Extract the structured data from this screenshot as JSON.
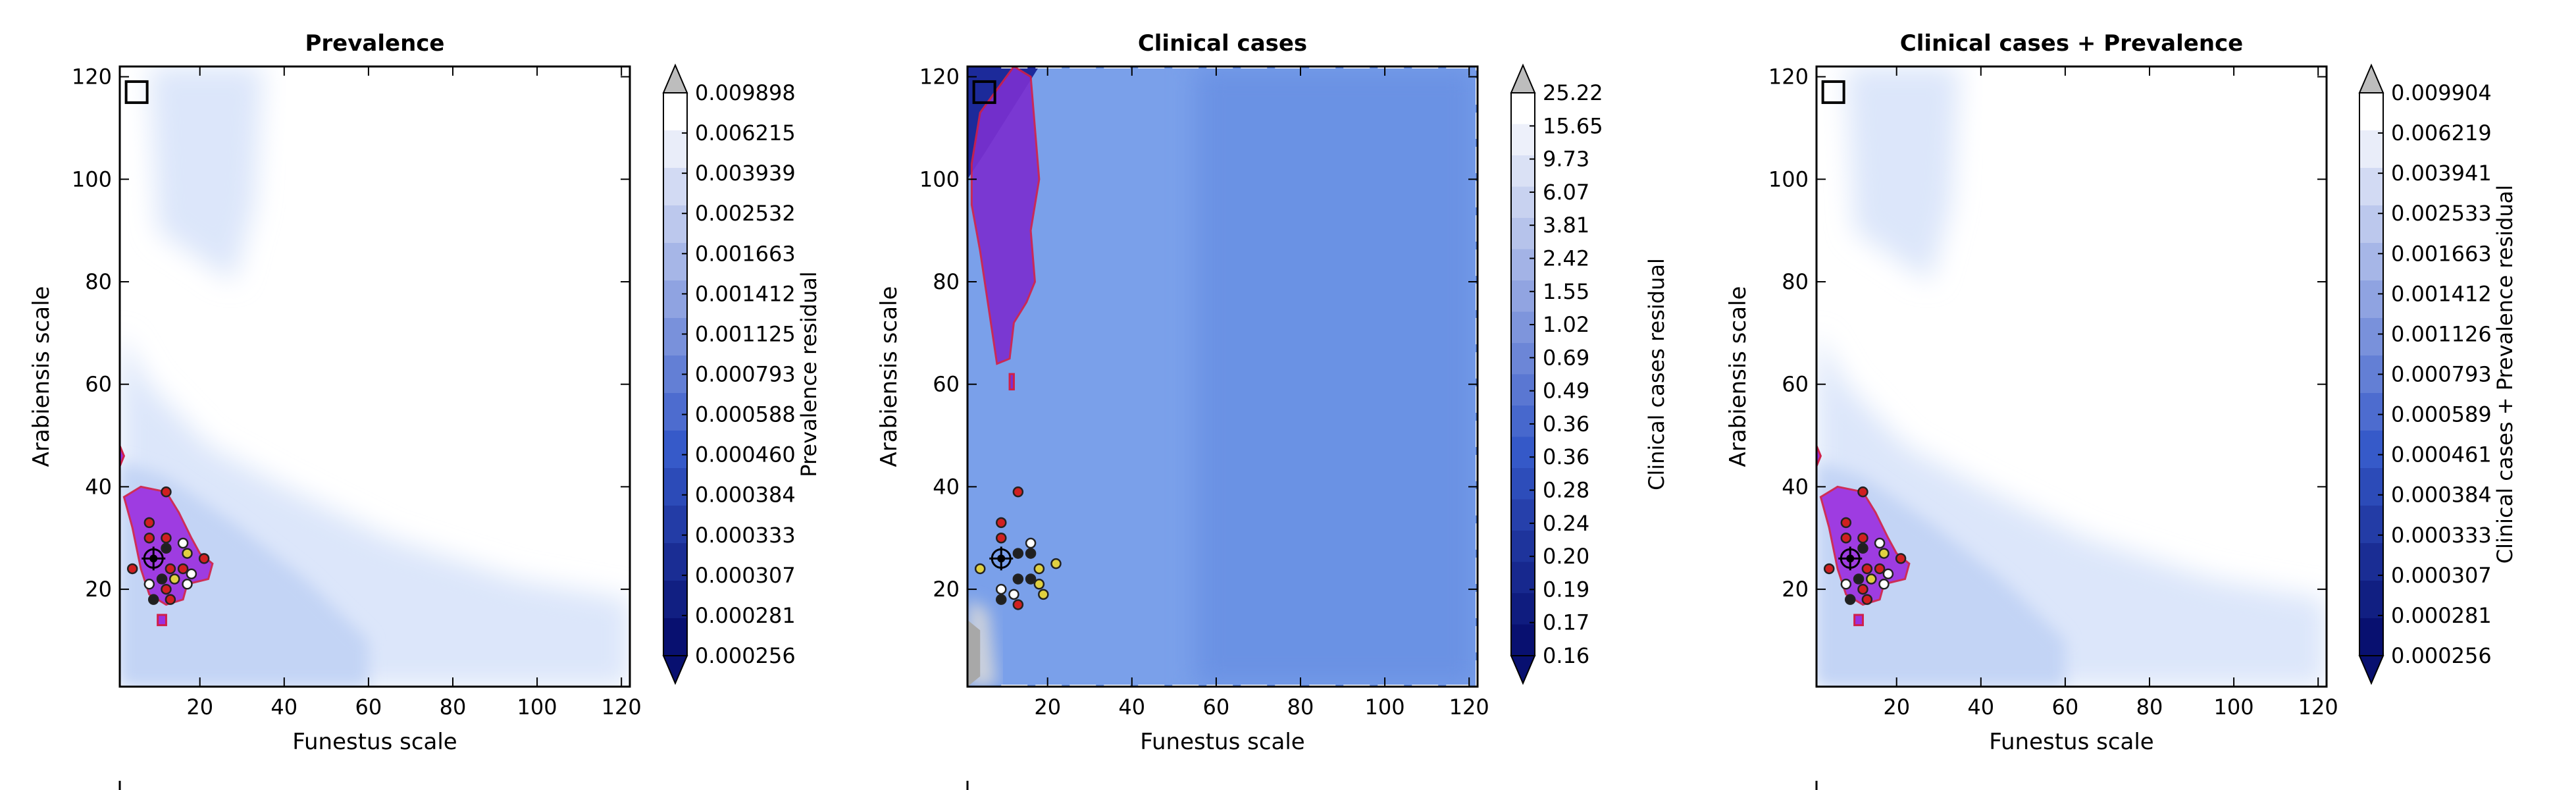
{
  "chart_data": [
    {
      "type": "heatmap",
      "title": "Prevalence",
      "xlabel": "Funestus scale",
      "ylabel": "Arabiensis scale",
      "xlim": [
        1,
        122
      ],
      "ylim": [
        1,
        122
      ],
      "xticks": [
        "20",
        "40",
        "60",
        "80",
        "100",
        "120"
      ],
      "yticks": [
        "20",
        "40",
        "60",
        "80",
        "100",
        "120"
      ],
      "grid": false,
      "colorbar_label": "Prevalence residual",
      "colorbar_levels": [
        "0.009898",
        "0.006215",
        "0.003939",
        "0.002532",
        "0.001663",
        "0.001412",
        "0.001125",
        "0.000793",
        "0.000588",
        "0.000460",
        "0.000384",
        "0.000333",
        "0.000307",
        "0.000281",
        "0.000256"
      ],
      "best_region": {
        "name": "",
        "color": "#9b30e0",
        "outline": "#d0204a",
        "polygon": [
          [
            2,
            38
          ],
          [
            6,
            40
          ],
          [
            12,
            39
          ],
          [
            15,
            35
          ],
          [
            18,
            30
          ],
          [
            20,
            27
          ],
          [
            23,
            25
          ],
          [
            22,
            22
          ],
          [
            17,
            21
          ],
          [
            16,
            18
          ],
          [
            12,
            17
          ],
          [
            8,
            19
          ],
          [
            6,
            24
          ],
          [
            4,
            32
          ],
          [
            2,
            38
          ]
        ]
      },
      "secondary_region": {
        "polygon": [
          [
            10,
            13
          ],
          [
            12,
            13
          ],
          [
            12,
            15
          ],
          [
            10,
            15
          ],
          [
            10,
            13
          ]
        ]
      },
      "marker": {
        "x": 9,
        "y": 26
      },
      "square_marker": {
        "x": 5,
        "y": 117
      },
      "points": [
        {
          "x": 12,
          "y": 39,
          "color": "#d02020"
        },
        {
          "x": 8,
          "y": 33,
          "color": "#d02020"
        },
        {
          "x": 8,
          "y": 30,
          "color": "#d02020"
        },
        {
          "x": 12,
          "y": 30,
          "color": "#d02020"
        },
        {
          "x": 16,
          "y": 29,
          "color": "#ffffff"
        },
        {
          "x": 12,
          "y": 28,
          "color": "#202020"
        },
        {
          "x": 17,
          "y": 27,
          "color": "#e0d040"
        },
        {
          "x": 21,
          "y": 26,
          "color": "#d02020"
        },
        {
          "x": 4,
          "y": 24,
          "color": "#d02020"
        },
        {
          "x": 13,
          "y": 24,
          "color": "#d02020"
        },
        {
          "x": 16,
          "y": 24,
          "color": "#d02020"
        },
        {
          "x": 18,
          "y": 23,
          "color": "#ffffff"
        },
        {
          "x": 14,
          "y": 22,
          "color": "#e0d040"
        },
        {
          "x": 11,
          "y": 22,
          "color": "#202020"
        },
        {
          "x": 17,
          "y": 21,
          "color": "#ffffff"
        },
        {
          "x": 8,
          "y": 21,
          "color": "#ffffff"
        },
        {
          "x": 12,
          "y": 20,
          "color": "#d02020"
        },
        {
          "x": 13,
          "y": 18,
          "color": "#d02020"
        },
        {
          "x": 9,
          "y": 18,
          "color": "#202020"
        }
      ]
    },
    {
      "type": "heatmap",
      "title": "Clinical cases",
      "xlabel": "Funestus scale",
      "ylabel": "Arabiensis scale",
      "xlim": [
        1,
        122
      ],
      "ylim": [
        1,
        122
      ],
      "xticks": [
        "20",
        "40",
        "60",
        "80",
        "100",
        "120"
      ],
      "yticks": [
        "20",
        "40",
        "60",
        "80",
        "100",
        "120"
      ],
      "grid": false,
      "colorbar_label": "Clinical cases residual",
      "colorbar_levels": [
        "25.22",
        "15.65",
        "9.73",
        "6.07",
        "3.81",
        "2.42",
        "1.55",
        "1.02",
        "0.69",
        "0.49",
        "0.36",
        "0.36",
        "0.28",
        "0.24",
        "0.20",
        "0.19",
        "0.17",
        "0.16"
      ],
      "best_region": {
        "name": "",
        "color": "#7a30d0",
        "outline": "#d0204a",
        "polygon": [
          [
            2,
            103
          ],
          [
            4,
            113
          ],
          [
            12,
            122
          ],
          [
            16,
            120
          ],
          [
            17,
            110
          ],
          [
            18,
            100
          ],
          [
            16,
            90
          ],
          [
            17,
            80
          ],
          [
            15,
            76
          ],
          [
            12,
            72
          ],
          [
            11,
            65
          ],
          [
            8,
            64
          ],
          [
            6,
            75
          ],
          [
            4,
            86
          ],
          [
            2,
            95
          ],
          [
            2,
            103
          ]
        ]
      },
      "secondary_region": {
        "polygon": [
          [
            11,
            59
          ],
          [
            12,
            59
          ],
          [
            12,
            62
          ],
          [
            11,
            62
          ],
          [
            11,
            59
          ]
        ]
      },
      "marker": {
        "x": 9,
        "y": 26
      },
      "square_marker": {
        "x": 5,
        "y": 117
      },
      "points": [
        {
          "x": 13,
          "y": 39,
          "color": "#d02020"
        },
        {
          "x": 9,
          "y": 33,
          "color": "#d02020"
        },
        {
          "x": 9,
          "y": 30,
          "color": "#d02020"
        },
        {
          "x": 16,
          "y": 29,
          "color": "#ffffff"
        },
        {
          "x": 13,
          "y": 27,
          "color": "#202020"
        },
        {
          "x": 16,
          "y": 27,
          "color": "#202020"
        },
        {
          "x": 22,
          "y": 25,
          "color": "#e0d040"
        },
        {
          "x": 18,
          "y": 24,
          "color": "#e0d040"
        },
        {
          "x": 4,
          "y": 24,
          "color": "#e0d040"
        },
        {
          "x": 13,
          "y": 22,
          "color": "#202020"
        },
        {
          "x": 16,
          "y": 22,
          "color": "#202020"
        },
        {
          "x": 18,
          "y": 21,
          "color": "#e0d040"
        },
        {
          "x": 19,
          "y": 19,
          "color": "#e0d040"
        },
        {
          "x": 9,
          "y": 20,
          "color": "#ffffff"
        },
        {
          "x": 12,
          "y": 19,
          "color": "#ffffff"
        },
        {
          "x": 9,
          "y": 18,
          "color": "#202020"
        },
        {
          "x": 13,
          "y": 17,
          "color": "#d02020"
        }
      ]
    },
    {
      "type": "heatmap",
      "title": "Clinical cases + Prevalence",
      "xlabel": "Funestus scale",
      "ylabel": "Arabiensis scale",
      "xlim": [
        1,
        122
      ],
      "ylim": [
        1,
        122
      ],
      "xticks": [
        "20",
        "40",
        "60",
        "80",
        "100",
        "120"
      ],
      "yticks": [
        "20",
        "40",
        "60",
        "80",
        "100",
        "120"
      ],
      "grid": false,
      "colorbar_label": "Clinical cases + Prevalence residual",
      "colorbar_levels": [
        "0.009904",
        "0.006219",
        "0.003941",
        "0.002533",
        "0.001663",
        "0.001412",
        "0.001126",
        "0.000793",
        "0.000589",
        "0.000461",
        "0.000384",
        "0.000333",
        "0.000307",
        "0.000281",
        "0.000256"
      ],
      "best_region": {
        "name": "",
        "color": "#9b30e0",
        "outline": "#d0204a",
        "polygon": [
          [
            2,
            38
          ],
          [
            6,
            40
          ],
          [
            12,
            39
          ],
          [
            15,
            35
          ],
          [
            18,
            30
          ],
          [
            20,
            27
          ],
          [
            23,
            25
          ],
          [
            22,
            22
          ],
          [
            17,
            21
          ],
          [
            16,
            18
          ],
          [
            12,
            17
          ],
          [
            8,
            19
          ],
          [
            6,
            24
          ],
          [
            4,
            32
          ],
          [
            2,
            38
          ]
        ]
      },
      "secondary_region": {
        "polygon": [
          [
            10,
            13
          ],
          [
            12,
            13
          ],
          [
            12,
            15
          ],
          [
            10,
            15
          ],
          [
            10,
            13
          ]
        ]
      },
      "marker": {
        "x": 9,
        "y": 26
      },
      "square_marker": {
        "x": 5,
        "y": 117
      },
      "points": [
        {
          "x": 12,
          "y": 39,
          "color": "#d02020"
        },
        {
          "x": 8,
          "y": 33,
          "color": "#d02020"
        },
        {
          "x": 8,
          "y": 30,
          "color": "#d02020"
        },
        {
          "x": 12,
          "y": 30,
          "color": "#d02020"
        },
        {
          "x": 16,
          "y": 29,
          "color": "#ffffff"
        },
        {
          "x": 12,
          "y": 28,
          "color": "#202020"
        },
        {
          "x": 17,
          "y": 27,
          "color": "#e0d040"
        },
        {
          "x": 21,
          "y": 26,
          "color": "#d02020"
        },
        {
          "x": 4,
          "y": 24,
          "color": "#d02020"
        },
        {
          "x": 13,
          "y": 24,
          "color": "#d02020"
        },
        {
          "x": 16,
          "y": 24,
          "color": "#d02020"
        },
        {
          "x": 18,
          "y": 23,
          "color": "#ffffff"
        },
        {
          "x": 14,
          "y": 22,
          "color": "#e0d040"
        },
        {
          "x": 11,
          "y": 22,
          "color": "#202020"
        },
        {
          "x": 17,
          "y": 21,
          "color": "#ffffff"
        },
        {
          "x": 8,
          "y": 21,
          "color": "#ffffff"
        },
        {
          "x": 12,
          "y": 20,
          "color": "#d02020"
        },
        {
          "x": 13,
          "y": 18,
          "color": "#d02020"
        },
        {
          "x": 9,
          "y": 18,
          "color": "#202020"
        }
      ]
    }
  ],
  "colors": {
    "contour_fill_light": "#dce6fa",
    "contour_fill_mid": "#c3d4f5",
    "clinical_fill": "#7aa0ea",
    "clinical_fill_dark": "#6a92e4",
    "colorbar_over": "#bdbdbd",
    "colorbar_under": "#081070"
  }
}
